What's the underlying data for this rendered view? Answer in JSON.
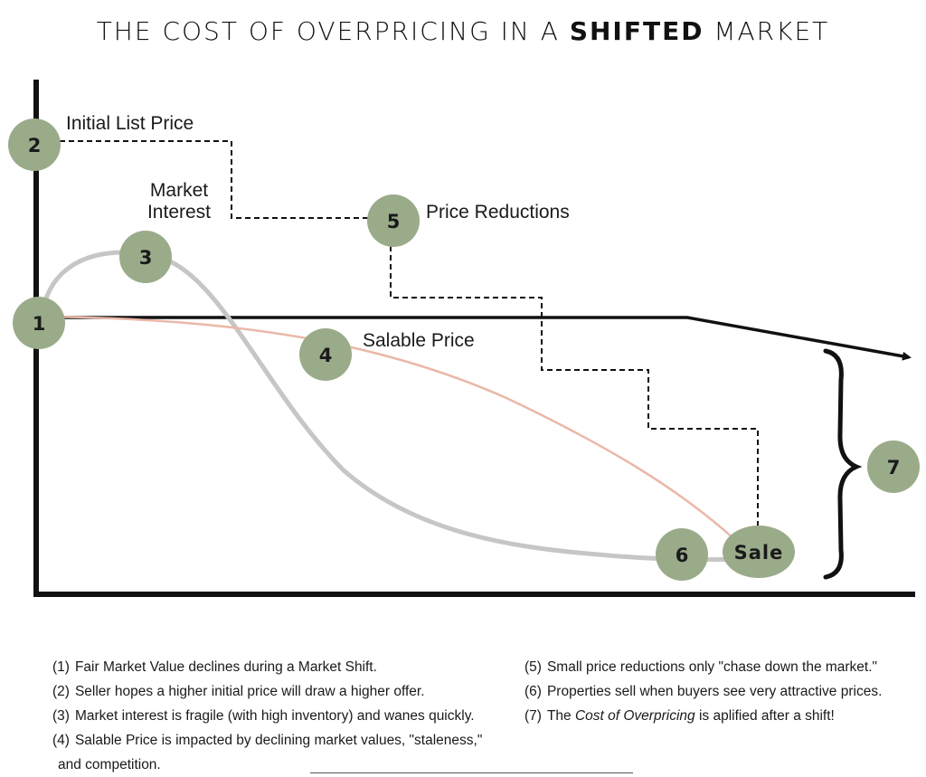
{
  "title": {
    "prefix": "THE COST OF OVERPRICING IN A",
    "bold": "SHIFTED",
    "suffix": "MARKET"
  },
  "diagram": {
    "labels": {
      "initial_list_price": "Initial List Price",
      "market_interest_1": "Market",
      "market_interest_2": "Interest",
      "price_reductions": "Price Reductions",
      "salable_price": "Salable Price",
      "sale": "Sale"
    },
    "markers": [
      "1",
      "2",
      "3",
      "4",
      "5",
      "6",
      "7"
    ],
    "colors": {
      "marker_fill": "#9aab8a",
      "axis": "#111111",
      "interest_curve": "#c6c6c6",
      "salable_curve": "#eab8a8",
      "list_price": "#111111"
    }
  },
  "notes": {
    "left": [
      {
        "n": "(1)",
        "text": "Fair Market Value declines during a Market Shift."
      },
      {
        "n": "(2)",
        "text": "Seller hopes a higher initial price will draw a higher offer."
      },
      {
        "n": "(3)",
        "text": "Market interest is fragile (with high inventory) and wanes quickly."
      },
      {
        "n": "(4)",
        "text": "Salable Price is impacted by declining market values, \"staleness,\"",
        "cont": "and competition."
      }
    ],
    "right": [
      {
        "n": "(5)",
        "text": "Small price reductions only \"chase down the market.\""
      },
      {
        "n": "(6)",
        "text": "Properties sell when buyers see very attractive prices."
      },
      {
        "n": "(7)",
        "pre": "The ",
        "em": "Cost of Overpricing",
        "post": " is aplified after a shift!"
      }
    ]
  }
}
